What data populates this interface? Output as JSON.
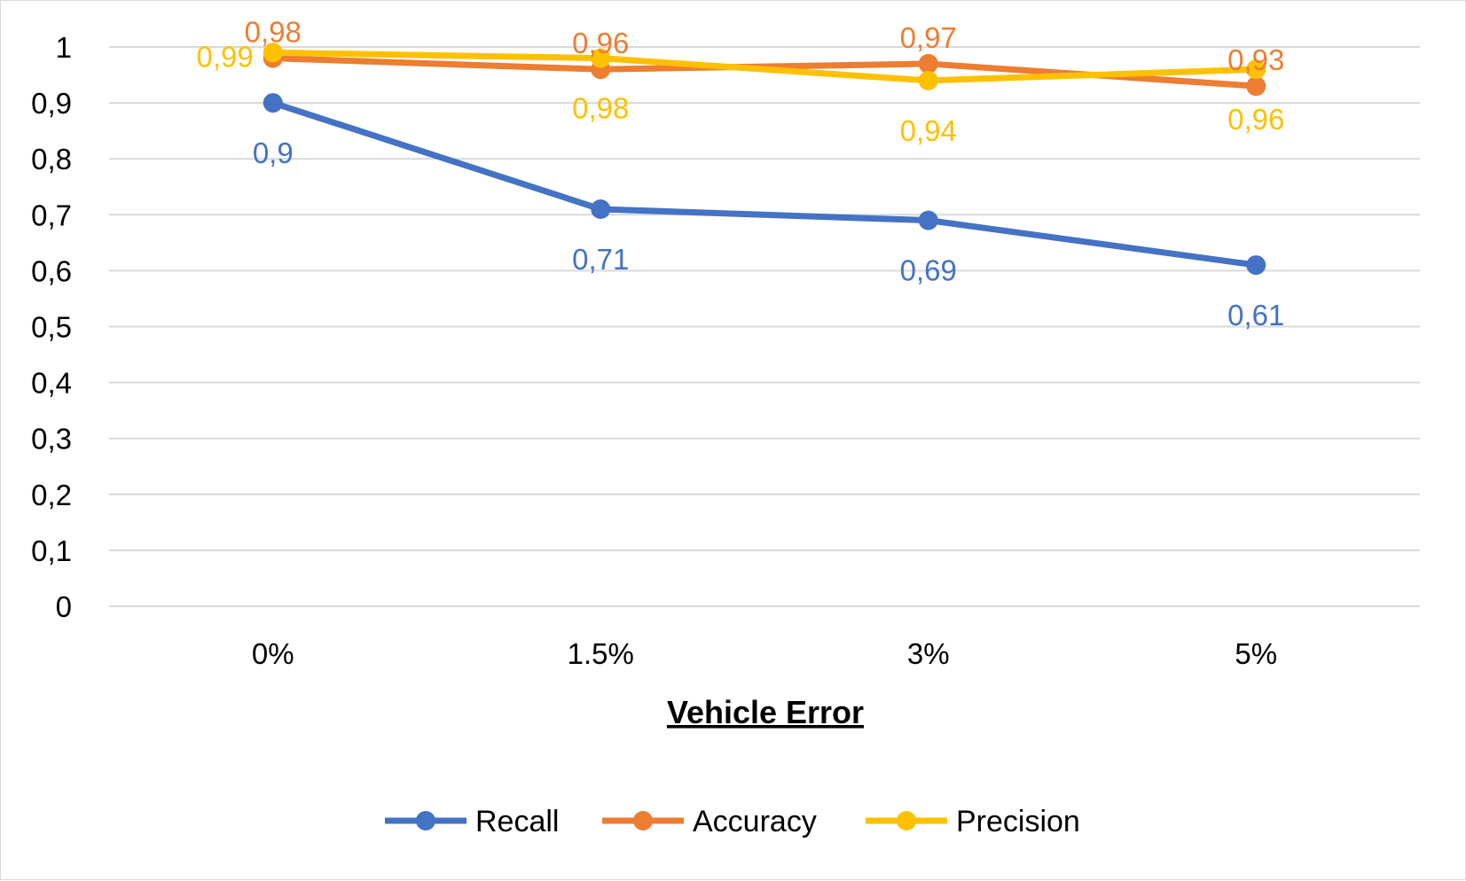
{
  "chart_data": {
    "type": "line",
    "title": "",
    "xlabel": "Vehicle Error",
    "ylabel": "",
    "categories": [
      "0%",
      "1.5%",
      "3%",
      "5%"
    ],
    "ylim": [
      0,
      1
    ],
    "yticks": [
      "0",
      "0,1",
      "0,2",
      "0,3",
      "0,4",
      "0,5",
      "0,6",
      "0,7",
      "0,8",
      "0,9",
      "1"
    ],
    "grid": true,
    "legend_position": "bottom",
    "series": [
      {
        "name": "Recall",
        "color": "#4472c4",
        "values": [
          0.9,
          0.71,
          0.69,
          0.61
        ],
        "labels": [
          "0,9",
          "0,71",
          "0,69",
          "0,61"
        ],
        "label_position": "below"
      },
      {
        "name": "Accuracy",
        "color": "#ed7d31",
        "values": [
          0.98,
          0.96,
          0.97,
          0.93
        ],
        "labels": [
          "0,98",
          "0,96",
          "0,97",
          "0,93"
        ],
        "label_position": "above"
      },
      {
        "name": "Precision",
        "color": "#ffc000",
        "values": [
          0.99,
          0.98,
          0.94,
          0.96
        ],
        "labels": [
          "0,99",
          "0,98",
          "0,94",
          "0,96"
        ],
        "label_position": "below"
      }
    ]
  }
}
